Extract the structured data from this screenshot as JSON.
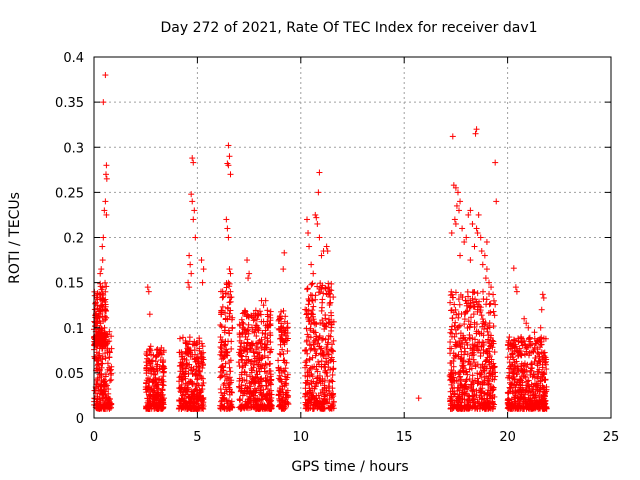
{
  "chart_data": {
    "type": "scatter",
    "title": "Day 272 of 2021, Rate Of TEC Index for receiver dav1",
    "xlabel": "GPS time / hours",
    "ylabel": "ROTI / TECUs",
    "xlim": [
      0,
      25
    ],
    "ylim": [
      0,
      0.4
    ],
    "xticks": [
      0,
      5,
      10,
      15,
      20,
      25
    ],
    "yticks": [
      0,
      0.05,
      0.1,
      0.15,
      0.2,
      0.25,
      0.3,
      0.35,
      0.4
    ],
    "grid": true,
    "marker": "plus",
    "color": "#ff0000",
    "clusters": [
      {
        "x": [
          0.0,
          0.85
        ],
        "y": [
          0.01,
          0.1
        ]
      },
      {
        "x": [
          0.0,
          0.6
        ],
        "y": [
          0.08,
          0.15
        ]
      },
      {
        "x": [
          2.5,
          3.4
        ],
        "y": [
          0.01,
          0.08
        ]
      },
      {
        "x": [
          4.1,
          5.3
        ],
        "y": [
          0.01,
          0.09
        ]
      },
      {
        "x": [
          6.1,
          6.7
        ],
        "y": [
          0.01,
          0.15
        ]
      },
      {
        "x": [
          7.0,
          8.6
        ],
        "y": [
          0.01,
          0.12
        ]
      },
      {
        "x": [
          8.9,
          9.4
        ],
        "y": [
          0.01,
          0.12
        ]
      },
      {
        "x": [
          10.2,
          11.6
        ],
        "y": [
          0.01,
          0.15
        ]
      },
      {
        "x": [
          17.2,
          19.4
        ],
        "y": [
          0.01,
          0.14
        ]
      },
      {
        "x": [
          20.0,
          21.9
        ],
        "y": [
          0.01,
          0.09
        ]
      }
    ],
    "points": [
      {
        "x": 0.55,
        "y": 0.38
      },
      {
        "x": 0.45,
        "y": 0.35
      },
      {
        "x": 0.6,
        "y": 0.28
      },
      {
        "x": 0.58,
        "y": 0.27
      },
      {
        "x": 0.62,
        "y": 0.265
      },
      {
        "x": 0.55,
        "y": 0.24
      },
      {
        "x": 0.5,
        "y": 0.23
      },
      {
        "x": 0.6,
        "y": 0.225
      },
      {
        "x": 0.45,
        "y": 0.2
      },
      {
        "x": 0.4,
        "y": 0.19
      },
      {
        "x": 0.35,
        "y": 0.165
      },
      {
        "x": 0.3,
        "y": 0.16
      },
      {
        "x": 0.42,
        "y": 0.175
      },
      {
        "x": 2.6,
        "y": 0.145
      },
      {
        "x": 2.65,
        "y": 0.14
      },
      {
        "x": 2.7,
        "y": 0.115
      },
      {
        "x": 4.75,
        "y": 0.288
      },
      {
        "x": 4.8,
        "y": 0.283
      },
      {
        "x": 4.7,
        "y": 0.248
      },
      {
        "x": 4.75,
        "y": 0.24
      },
      {
        "x": 4.85,
        "y": 0.23
      },
      {
        "x": 4.8,
        "y": 0.22
      },
      {
        "x": 4.9,
        "y": 0.2
      },
      {
        "x": 4.6,
        "y": 0.18
      },
      {
        "x": 4.65,
        "y": 0.17
      },
      {
        "x": 4.7,
        "y": 0.16
      },
      {
        "x": 4.55,
        "y": 0.15
      },
      {
        "x": 4.6,
        "y": 0.145
      },
      {
        "x": 5.2,
        "y": 0.175
      },
      {
        "x": 5.3,
        "y": 0.165
      },
      {
        "x": 5.25,
        "y": 0.15
      },
      {
        "x": 6.5,
        "y": 0.302
      },
      {
        "x": 6.55,
        "y": 0.29
      },
      {
        "x": 6.45,
        "y": 0.282
      },
      {
        "x": 6.5,
        "y": 0.28
      },
      {
        "x": 6.6,
        "y": 0.27
      },
      {
        "x": 6.4,
        "y": 0.22
      },
      {
        "x": 6.45,
        "y": 0.21
      },
      {
        "x": 6.5,
        "y": 0.2
      },
      {
        "x": 6.55,
        "y": 0.165
      },
      {
        "x": 6.6,
        "y": 0.16
      },
      {
        "x": 7.4,
        "y": 0.175
      },
      {
        "x": 7.5,
        "y": 0.16
      },
      {
        "x": 7.45,
        "y": 0.155
      },
      {
        "x": 8.1,
        "y": 0.13
      },
      {
        "x": 8.2,
        "y": 0.125
      },
      {
        "x": 8.3,
        "y": 0.13
      },
      {
        "x": 9.2,
        "y": 0.183
      },
      {
        "x": 9.15,
        "y": 0.165
      },
      {
        "x": 10.3,
        "y": 0.22
      },
      {
        "x": 10.35,
        "y": 0.205
      },
      {
        "x": 10.4,
        "y": 0.19
      },
      {
        "x": 10.9,
        "y": 0.272
      },
      {
        "x": 10.85,
        "y": 0.25
      },
      {
        "x": 10.7,
        "y": 0.225
      },
      {
        "x": 10.75,
        "y": 0.222
      },
      {
        "x": 10.8,
        "y": 0.215
      },
      {
        "x": 10.9,
        "y": 0.2
      },
      {
        "x": 11.0,
        "y": 0.18
      },
      {
        "x": 11.1,
        "y": 0.185
      },
      {
        "x": 11.25,
        "y": 0.19
      },
      {
        "x": 11.3,
        "y": 0.185
      },
      {
        "x": 11.35,
        "y": 0.145
      },
      {
        "x": 11.4,
        "y": 0.142
      },
      {
        "x": 10.5,
        "y": 0.17
      },
      {
        "x": 10.6,
        "y": 0.16
      },
      {
        "x": 15.7,
        "y": 0.022
      },
      {
        "x": 17.35,
        "y": 0.312
      },
      {
        "x": 18.5,
        "y": 0.32
      },
      {
        "x": 18.45,
        "y": 0.315
      },
      {
        "x": 19.4,
        "y": 0.283
      },
      {
        "x": 19.45,
        "y": 0.24
      },
      {
        "x": 17.4,
        "y": 0.258
      },
      {
        "x": 17.5,
        "y": 0.255
      },
      {
        "x": 17.6,
        "y": 0.25
      },
      {
        "x": 17.7,
        "y": 0.24
      },
      {
        "x": 17.55,
        "y": 0.235
      },
      {
        "x": 17.65,
        "y": 0.23
      },
      {
        "x": 17.45,
        "y": 0.22
      },
      {
        "x": 17.5,
        "y": 0.215
      },
      {
        "x": 17.3,
        "y": 0.205
      },
      {
        "x": 17.8,
        "y": 0.21
      },
      {
        "x": 17.9,
        "y": 0.195
      },
      {
        "x": 18.0,
        "y": 0.2
      },
      {
        "x": 18.1,
        "y": 0.225
      },
      {
        "x": 18.2,
        "y": 0.23
      },
      {
        "x": 18.3,
        "y": 0.215
      },
      {
        "x": 18.4,
        "y": 0.19
      },
      {
        "x": 18.5,
        "y": 0.21
      },
      {
        "x": 18.55,
        "y": 0.205
      },
      {
        "x": 18.6,
        "y": 0.225
      },
      {
        "x": 18.7,
        "y": 0.2
      },
      {
        "x": 18.75,
        "y": 0.185
      },
      {
        "x": 18.8,
        "y": 0.17
      },
      {
        "x": 18.9,
        "y": 0.18
      },
      {
        "x": 18.95,
        "y": 0.155
      },
      {
        "x": 19.0,
        "y": 0.165
      },
      {
        "x": 19.1,
        "y": 0.15
      },
      {
        "x": 19.2,
        "y": 0.145
      },
      {
        "x": 19.0,
        "y": 0.195
      },
      {
        "x": 18.2,
        "y": 0.175
      },
      {
        "x": 17.7,
        "y": 0.18
      },
      {
        "x": 20.3,
        "y": 0.166
      },
      {
        "x": 20.4,
        "y": 0.145
      },
      {
        "x": 20.45,
        "y": 0.14
      },
      {
        "x": 21.7,
        "y": 0.137
      },
      {
        "x": 21.75,
        "y": 0.133
      },
      {
        "x": 21.65,
        "y": 0.12
      },
      {
        "x": 20.8,
        "y": 0.11
      },
      {
        "x": 20.9,
        "y": 0.105
      },
      {
        "x": 21.0,
        "y": 0.1
      },
      {
        "x": 21.3,
        "y": 0.095
      },
      {
        "x": 21.6,
        "y": 0.1
      }
    ]
  }
}
